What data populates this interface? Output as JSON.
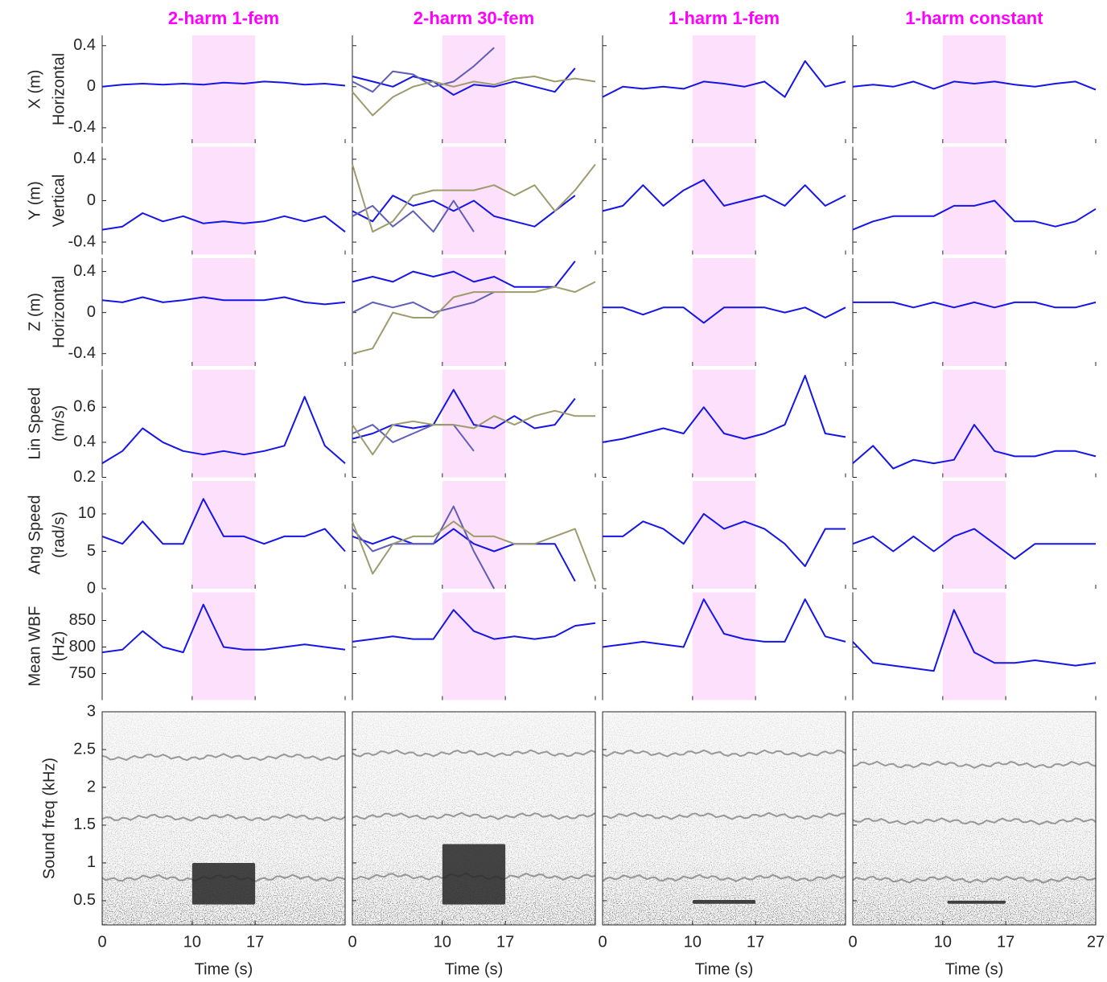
{
  "chart_data": {
    "type": "small-multiples",
    "x": [
      0,
      2.25,
      4.5,
      6.75,
      9,
      11.25,
      13.5,
      15.75,
      18,
      20.25,
      22.5,
      24.75,
      27
    ],
    "xlim": [
      0,
      27
    ],
    "xticks": [
      0,
      10,
      17,
      27
    ],
    "xlabel": "Time (s)",
    "shade": [
      10,
      17
    ],
    "shade_color": "#fde0fb",
    "columns": [
      "2-harm 1-fem",
      "2-harm 30-fem",
      "1-harm 1-fem",
      "1-harm constant"
    ],
    "rows": [
      {
        "labels": [
          "X (m)",
          "Horizontal"
        ],
        "ylim": [
          -0.55,
          0.5
        ],
        "yticks": [
          -0.4,
          0,
          0.4
        ],
        "panels": [
          [
            {
              "color": "#1515e8",
              "values": [
                0,
                0.02,
                0.03,
                0.02,
                0.03,
                0.02,
                0.04,
                0.03,
                0.05,
                0.04,
                0.02,
                0.03,
                0.01
              ]
            }
          ],
          [
            {
              "color": "#1515e8",
              "values": [
                0.1,
                0.05,
                0,
                0.1,
                0.05,
                -0.08,
                0.02,
                0,
                0.05,
                0,
                -0.05,
                0.18,
                null
              ]
            },
            {
              "color": "#5f5fb8",
              "values": [
                0.05,
                -0.05,
                0.15,
                0.12,
                0,
                0.05,
                0.2,
                0.38,
                null,
                null,
                null,
                null,
                null
              ]
            },
            {
              "color": "#9c9c6e",
              "values": [
                -0.05,
                -0.28,
                -0.1,
                0,
                0.05,
                0,
                0.05,
                0.02,
                0.08,
                0.1,
                0.05,
                0.08,
                0.05
              ]
            }
          ],
          [
            {
              "color": "#1515e8",
              "values": [
                -0.1,
                0,
                -0.02,
                0,
                -0.02,
                0.05,
                0.03,
                0,
                0.05,
                -0.1,
                0.25,
                0,
                0.05
              ]
            }
          ],
          [
            {
              "color": "#1515e8",
              "values": [
                0,
                0.02,
                0,
                0.05,
                -0.02,
                0.05,
                0.03,
                0.05,
                0.02,
                0,
                0.03,
                0.05,
                -0.03
              ]
            }
          ]
        ]
      },
      {
        "labels": [
          "Y (m)",
          "Vertical"
        ],
        "ylim": [
          -0.52,
          0.52
        ],
        "yticks": [
          -0.4,
          0,
          0.4
        ],
        "panels": [
          [
            {
              "color": "#1515e8",
              "values": [
                -0.28,
                -0.25,
                -0.12,
                -0.2,
                -0.15,
                -0.22,
                -0.2,
                -0.22,
                -0.2,
                -0.15,
                -0.2,
                -0.15,
                -0.3
              ]
            }
          ],
          [
            {
              "color": "#1515e8",
              "values": [
                -0.1,
                -0.2,
                0.05,
                -0.05,
                0,
                -0.1,
                0,
                -0.15,
                -0.2,
                -0.25,
                -0.1,
                0.05,
                null
              ]
            },
            {
              "color": "#5f5fb8",
              "values": [
                -0.15,
                -0.05,
                -0.25,
                -0.1,
                -0.3,
                0,
                -0.3,
                null,
                null,
                null,
                null,
                null,
                null
              ]
            },
            {
              "color": "#9c9c6e",
              "values": [
                0.35,
                -0.3,
                -0.2,
                0.05,
                0.1,
                0.1,
                0.1,
                0.15,
                0.05,
                0.15,
                -0.1,
                0.1,
                0.35
              ]
            }
          ],
          [
            {
              "color": "#1515e8",
              "values": [
                -0.1,
                -0.05,
                0.15,
                -0.05,
                0.1,
                0.2,
                -0.05,
                0,
                0.05,
                -0.05,
                0.15,
                -0.05,
                0.05
              ]
            }
          ],
          [
            {
              "color": "#1515e8",
              "values": [
                -0.28,
                -0.2,
                -0.15,
                -0.15,
                -0.15,
                -0.05,
                -0.05,
                0,
                -0.2,
                -0.2,
                -0.25,
                -0.2,
                -0.08
              ]
            }
          ]
        ]
      },
      {
        "labels": [
          "Z (m)",
          "Horizontal"
        ],
        "ylim": [
          -0.52,
          0.53
        ],
        "yticks": [
          -0.4,
          0,
          0.4
        ],
        "panels": [
          [
            {
              "color": "#1515e8",
              "values": [
                0.12,
                0.1,
                0.15,
                0.1,
                0.12,
                0.15,
                0.12,
                0.12,
                0.12,
                0.15,
                0.1,
                0.08,
                0.1
              ]
            }
          ],
          [
            {
              "color": "#1515e8",
              "values": [
                0.3,
                0.35,
                0.3,
                0.4,
                0.35,
                0.4,
                0.3,
                0.35,
                0.25,
                0.25,
                0.25,
                0.5,
                null
              ]
            },
            {
              "color": "#5f5fb8",
              "values": [
                0,
                0.1,
                0.05,
                0.1,
                0,
                0.05,
                0.1,
                0.2,
                null,
                null,
                null,
                null,
                null
              ]
            },
            {
              "color": "#9c9c6e",
              "values": [
                -0.4,
                -0.35,
                0,
                -0.05,
                -0.05,
                0.15,
                0.2,
                0.2,
                0.2,
                0.2,
                0.25,
                0.2,
                0.3
              ]
            }
          ],
          [
            {
              "color": "#1515e8",
              "values": [
                0.05,
                0.05,
                -0.02,
                0.05,
                0.05,
                -0.1,
                0.05,
                0.05,
                0.05,
                0,
                0.05,
                -0.05,
                0.05
              ]
            }
          ],
          [
            {
              "color": "#1515e8",
              "values": [
                0.1,
                0.1,
                0.1,
                0.05,
                0.1,
                0.05,
                0.1,
                0.05,
                0.1,
                0.1,
                0.05,
                0.05,
                0.1
              ]
            }
          ]
        ]
      },
      {
        "labels": [
          "Lin Speed",
          "(m/s)"
        ],
        "ylim": [
          0.2,
          0.815
        ],
        "yticks": [
          0.2,
          0.4,
          0.6
        ],
        "panels": [
          [
            {
              "color": "#1515e8",
              "values": [
                0.28,
                0.35,
                0.48,
                0.4,
                0.35,
                0.33,
                0.35,
                0.33,
                0.35,
                0.38,
                0.66,
                0.38,
                0.28
              ]
            }
          ],
          [
            {
              "color": "#1515e8",
              "values": [
                0.42,
                0.45,
                0.5,
                0.48,
                0.5,
                0.7,
                0.5,
                0.48,
                0.55,
                0.48,
                0.5,
                0.65,
                null
              ]
            },
            {
              "color": "#5f5fb8",
              "values": [
                0.45,
                0.5,
                0.4,
                0.45,
                0.5,
                0.5,
                0.35,
                null,
                null,
                null,
                null,
                null,
                null
              ]
            },
            {
              "color": "#9c9c6e",
              "values": [
                0.5,
                0.33,
                0.5,
                0.52,
                0.5,
                0.5,
                0.48,
                0.55,
                0.5,
                0.55,
                0.58,
                0.55,
                0.55
              ]
            }
          ],
          [
            {
              "color": "#1515e8",
              "values": [
                0.4,
                0.42,
                0.45,
                0.48,
                0.45,
                0.6,
                0.45,
                0.42,
                0.45,
                0.5,
                0.78,
                0.45,
                0.43
              ]
            }
          ],
          [
            {
              "color": "#1515e8",
              "values": [
                0.28,
                0.38,
                0.25,
                0.3,
                0.28,
                0.3,
                0.5,
                0.35,
                0.32,
                0.32,
                0.35,
                0.35,
                0.32
              ]
            }
          ]
        ]
      },
      {
        "labels": [
          "Ang Speed",
          "(rad/s)"
        ],
        "ylim": [
          0,
          14.4
        ],
        "yticks": [
          0,
          5,
          10
        ],
        "panels": [
          [
            {
              "color": "#1515e8",
              "values": [
                7,
                6,
                9,
                6,
                6,
                12,
                7,
                7,
                6,
                7,
                7,
                8,
                5
              ]
            }
          ],
          [
            {
              "color": "#1515e8",
              "values": [
                7,
                6,
                7,
                6,
                6,
                8,
                6,
                5,
                6,
                6,
                6,
                1,
                null
              ]
            },
            {
              "color": "#5f5fb8",
              "values": [
                8,
                5,
                6,
                6,
                6,
                11,
                5,
                0,
                null,
                null,
                null,
                null,
                null
              ]
            },
            {
              "color": "#9c9c6e",
              "values": [
                9,
                2,
                6,
                7,
                7,
                9,
                7,
                7,
                6,
                6,
                7,
                8,
                1
              ]
            }
          ],
          [
            {
              "color": "#1515e8",
              "values": [
                7,
                7,
                9,
                8,
                6,
                10,
                8,
                9,
                8,
                6,
                3,
                8,
                8
              ]
            }
          ],
          [
            {
              "color": "#1515e8",
              "values": [
                6,
                7,
                5,
                7,
                5,
                7,
                8,
                6,
                4,
                6,
                6,
                6,
                6
              ]
            }
          ]
        ]
      },
      {
        "labels": [
          "Mean WBF",
          "(Hz)"
        ],
        "ylim": [
          700,
          903
        ],
        "yticks": [
          750,
          800,
          850
        ],
        "panels": [
          [
            {
              "color": "#1515e8",
              "values": [
                790,
                795,
                830,
                800,
                790,
                880,
                800,
                795,
                795,
                800,
                805,
                800,
                795
              ]
            }
          ],
          [
            {
              "color": "#1515e8",
              "values": [
                810,
                815,
                820,
                815,
                815,
                870,
                830,
                815,
                820,
                815,
                820,
                840,
                845
              ]
            }
          ],
          [
            {
              "color": "#1515e8",
              "values": [
                800,
                805,
                810,
                805,
                800,
                890,
                825,
                815,
                810,
                810,
                890,
                820,
                810
              ]
            }
          ],
          [
            {
              "color": "#1515e8",
              "values": [
                810,
                770,
                765,
                760,
                755,
                870,
                790,
                770,
                770,
                775,
                770,
                765,
                770
              ]
            }
          ]
        ]
      }
    ],
    "spectrogram": {
      "labels": [
        "Sound freq (kHz)"
      ],
      "ylim": [
        0.18,
        3
      ],
      "yticks": [
        0.5,
        1,
        1.5,
        2,
        2.5,
        3
      ],
      "panels": [
        {
          "harmonics": [
            0.8,
            1.6,
            2.4
          ],
          "stimulus": {
            "t": [
              10,
              17
            ],
            "f": [
              0.45,
              1
            ]
          }
        },
        {
          "harmonics": [
            0.82,
            1.62,
            2.45
          ],
          "stimulus": {
            "t": [
              10,
              17
            ],
            "f": [
              0.45,
              1.25
            ]
          }
        },
        {
          "harmonics": [
            0.8,
            1.62,
            2.45
          ],
          "stimulus": {
            "t": [
              10,
              17
            ],
            "f": [
              0.46,
              0.51
            ]
          }
        },
        {
          "harmonics": [
            0.78,
            1.55,
            2.3
          ],
          "stimulus": {
            "t": [
              10.5,
              17
            ],
            "f": [
              0.46,
              0.5
            ]
          }
        }
      ]
    }
  }
}
